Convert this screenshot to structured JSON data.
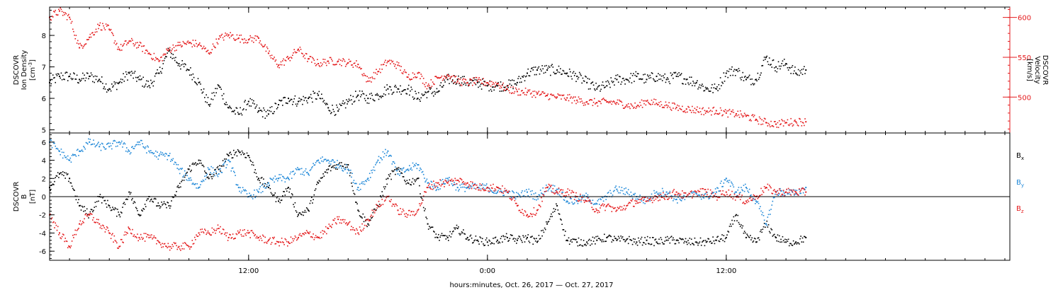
{
  "colors": {
    "black": "#000000",
    "red": "#e41a1c",
    "blue": "#1f88d8"
  },
  "chart_data": [
    {
      "panel": "plasma",
      "type": "scatter",
      "left_axis": {
        "label_lines": [
          "DSCOVR",
          "Ion Density"
        ],
        "unit_main": "[cm",
        "unit_sup": "-3",
        "unit_end": "]",
        "ylim": [
          4.9,
          8.9
        ],
        "ticks": [
          5,
          6,
          7,
          8
        ],
        "tick_labels": [
          "5",
          "6",
          "7",
          "8"
        ]
      },
      "right_axis": {
        "label_lines": [
          "DSCOVR",
          "Velocity",
          "[km/s]"
        ],
        "ylim": [
          455,
          613
        ],
        "ticks": [
          500,
          550,
          600
        ],
        "tick_labels": [
          "500",
          "550",
          "600"
        ],
        "color": "#e41a1c"
      },
      "xlim_hours": [
        2.0,
        50.25
      ],
      "series": [
        {
          "axis": "left",
          "color": "#000000",
          "x": [
            2.0,
            2.5,
            3.0,
            3.5,
            4.0,
            4.5,
            5.0,
            5.5,
            6.0,
            6.5,
            7.0,
            7.5,
            8.0,
            8.5,
            9.0,
            9.5,
            10.0,
            10.5,
            11.0,
            11.5,
            12.0,
            12.5,
            13.0,
            13.5,
            14.0,
            14.5,
            15.0,
            15.5,
            16.0,
            16.5,
            17.0,
            17.5,
            18.0,
            18.5,
            19.0,
            19.5,
            20.0,
            20.5,
            21.0,
            21.5,
            22.0,
            22.5,
            23.0,
            23.5,
            24.0,
            24.5,
            25.0,
            25.5,
            26.0,
            26.5,
            27.0,
            27.5,
            28.0,
            28.5,
            29.0,
            29.5,
            30.0,
            30.5,
            31.0,
            31.5,
            32.0,
            32.5,
            33.0,
            33.5,
            34.0,
            34.5,
            35.0,
            35.5,
            36.0,
            36.5,
            37.0,
            37.5,
            38.0,
            38.5,
            39.0,
            39.5,
            40.0
          ],
          "values": [
            6.5,
            6.7,
            6.7,
            6.6,
            6.7,
            6.6,
            6.3,
            6.5,
            6.8,
            6.6,
            6.4,
            6.8,
            7.5,
            7.1,
            6.9,
            6.5,
            5.8,
            6.4,
            5.7,
            5.5,
            5.9,
            5.6,
            5.5,
            5.8,
            6.0,
            5.9,
            6.0,
            6.1,
            5.7,
            5.6,
            5.9,
            6.1,
            6.0,
            6.1,
            6.3,
            6.3,
            6.3,
            6.0,
            6.2,
            6.2,
            6.6,
            6.6,
            6.5,
            6.5,
            6.4,
            6.4,
            6.4,
            6.5,
            6.8,
            6.9,
            6.9,
            6.9,
            6.8,
            6.7,
            6.5,
            6.3,
            6.4,
            6.6,
            6.6,
            6.7,
            6.6,
            6.7,
            6.6,
            6.7,
            6.6,
            6.5,
            6.3,
            6.3,
            6.8,
            6.9,
            6.6,
            6.6,
            7.3,
            7.0,
            7.1,
            6.8,
            6.9
          ]
        },
        {
          "axis": "right",
          "color": "#e41a1c",
          "x": [
            2.0,
            2.5,
            3.0,
            3.5,
            4.0,
            4.5,
            5.0,
            5.5,
            6.0,
            6.5,
            7.0,
            7.5,
            8.0,
            8.5,
            9.0,
            9.5,
            10.0,
            10.5,
            11.0,
            11.5,
            12.0,
            12.5,
            13.0,
            13.5,
            14.0,
            14.5,
            15.0,
            15.5,
            16.0,
            16.5,
            17.0,
            17.5,
            18.0,
            18.5,
            19.0,
            19.5,
            20.0,
            20.5,
            21.0,
            21.5,
            22.0,
            22.5,
            23.0,
            23.5,
            24.0,
            24.5,
            25.0,
            25.5,
            26.0,
            26.5,
            27.0,
            27.5,
            28.0,
            28.5,
            29.0,
            29.5,
            30.0,
            30.5,
            31.0,
            31.5,
            32.0,
            32.5,
            33.0,
            33.5,
            34.0,
            34.5,
            35.0,
            35.5,
            36.0,
            36.5,
            37.0,
            37.5,
            38.0,
            38.5,
            39.0,
            39.5,
            40.0
          ],
          "values": [
            600,
            608,
            600,
            562,
            575,
            590,
            585,
            560,
            570,
            565,
            555,
            545,
            560,
            565,
            568,
            566,
            555,
            573,
            578,
            574,
            572,
            574,
            555,
            540,
            548,
            560,
            548,
            542,
            545,
            545,
            543,
            541,
            520,
            532,
            545,
            540,
            525,
            530,
            514,
            524,
            528,
            520,
            518,
            520,
            518,
            517,
            510,
            507,
            506,
            504,
            502,
            500,
            499,
            496,
            494,
            493,
            494,
            493,
            490,
            488,
            495,
            492,
            490,
            487,
            485,
            484,
            482,
            483,
            480,
            479,
            476,
            472,
            468,
            466,
            468,
            469,
            469
          ]
        }
      ]
    },
    {
      "panel": "magnetic-field",
      "type": "scatter",
      "left_axis": {
        "label_lines": [
          "DSCOVR",
          "B",
          "[nT]"
        ],
        "ylim": [
          -7.0,
          7.0
        ],
        "ticks": [
          -6,
          -4,
          -2,
          0,
          2,
          4,
          6
        ],
        "tick_labels": [
          "-6",
          "-4",
          "-2",
          "0",
          "2",
          "4",
          "6"
        ]
      },
      "zero_line": 0,
      "legend": {
        "placement": "right",
        "entries": [
          {
            "base": "B",
            "sub": "x",
            "color": "#000000"
          },
          {
            "base": "B",
            "sub": "y",
            "color": "#1f88d8"
          },
          {
            "base": "B",
            "sub": "z",
            "color": "#e41a1c"
          }
        ]
      },
      "xlim_hours": [
        2.0,
        50.25
      ],
      "series": [
        {
          "name": "Bx",
          "color": "#000000",
          "x": [
            2.0,
            2.5,
            3.0,
            3.5,
            4.0,
            4.5,
            5.0,
            5.5,
            6.0,
            6.5,
            7.0,
            7.5,
            8.0,
            8.5,
            9.0,
            9.5,
            10.0,
            10.5,
            11.0,
            11.5,
            12.0,
            12.5,
            13.0,
            13.5,
            14.0,
            14.5,
            15.0,
            15.5,
            16.0,
            16.5,
            17.0,
            17.5,
            18.0,
            18.5,
            19.0,
            19.5,
            20.0,
            20.5,
            21.0,
            21.5,
            22.0,
            22.5,
            23.0,
            23.5,
            24.0,
            24.5,
            25.0,
            25.5,
            26.0,
            26.5,
            27.0,
            27.5,
            28.0,
            28.5,
            29.0,
            29.5,
            30.0,
            30.5,
            31.0,
            31.5,
            32.0,
            32.5,
            33.0,
            33.5,
            34.0,
            34.5,
            35.0,
            35.5,
            36.0,
            36.5,
            37.0,
            37.5,
            38.0,
            38.5,
            39.0,
            39.5,
            40.0
          ],
          "values": [
            1.0,
            2.5,
            2.0,
            -1.0,
            -2.0,
            0.0,
            -1.0,
            -2.0,
            0.5,
            -2.0,
            0.0,
            -1.0,
            -1.0,
            1.0,
            3.0,
            4.0,
            2.0,
            3.0,
            4.5,
            5.0,
            4.5,
            2.0,
            1.0,
            -0.5,
            1.0,
            -2.0,
            -1.5,
            1.5,
            3.0,
            3.5,
            3.5,
            -1.5,
            -3.0,
            -1.0,
            2.0,
            3.0,
            1.5,
            2.0,
            -3.0,
            -4.5,
            -4.5,
            -3.5,
            -4.5,
            -4.8,
            -5.0,
            -4.8,
            -4.5,
            -4.8,
            -4.5,
            -5.0,
            -3.0,
            -1.0,
            -4.8,
            -5.0,
            -5.0,
            -4.8,
            -4.5,
            -4.8,
            -4.7,
            -5.0,
            -4.8,
            -5.0,
            -4.8,
            -4.8,
            -5.0,
            -5.0,
            -5.0,
            -4.8,
            -4.5,
            -2.0,
            -4.5,
            -5.0,
            -3.0,
            -4.5,
            -5.0,
            -5.0,
            -4.5
          ]
        },
        {
          "name": "By",
          "color": "#1f88d8",
          "x": [
            2.0,
            2.5,
            3.0,
            3.5,
            4.0,
            4.5,
            5.0,
            5.5,
            6.0,
            6.5,
            7.0,
            7.5,
            8.0,
            8.5,
            9.0,
            9.5,
            10.0,
            10.5,
            11.0,
            11.5,
            12.0,
            12.5,
            13.0,
            13.5,
            14.0,
            14.5,
            15.0,
            15.5,
            16.0,
            16.5,
            17.0,
            17.5,
            18.0,
            18.5,
            19.0,
            19.5,
            20.0,
            20.5,
            21.0,
            21.5,
            22.0,
            22.5,
            23.0,
            23.5,
            24.0,
            24.5,
            25.0,
            25.5,
            26.0,
            26.5,
            27.0,
            27.5,
            28.0,
            28.5,
            29.0,
            29.5,
            30.0,
            30.5,
            31.0,
            31.5,
            32.0,
            32.5,
            33.0,
            33.5,
            34.0,
            34.5,
            35.0,
            35.5,
            36.0,
            36.5,
            37.0,
            37.5,
            38.0,
            38.5,
            39.0,
            39.5,
            40.0
          ],
          "values": [
            6.0,
            5.0,
            4.0,
            5.0,
            6.0,
            5.5,
            5.5,
            6.0,
            5.0,
            6.0,
            5.0,
            4.5,
            4.5,
            3.0,
            2.0,
            1.0,
            3.0,
            2.5,
            4.0,
            1.0,
            0.0,
            0.5,
            1.5,
            2.0,
            2.0,
            3.0,
            2.5,
            4.0,
            4.0,
            3.5,
            3.0,
            1.0,
            2.0,
            4.0,
            5.0,
            2.5,
            3.0,
            3.5,
            1.5,
            1.0,
            2.0,
            1.0,
            1.0,
            1.0,
            1.0,
            0.5,
            0.5,
            0.0,
            0.5,
            0.0,
            1.0,
            0.8,
            -0.5,
            -0.5,
            0.0,
            -0.8,
            0.0,
            0.8,
            0.5,
            0.0,
            -0.5,
            0.5,
            0.5,
            -0.3,
            0.0,
            0.3,
            0.0,
            0.5,
            2.0,
            0.5,
            1.0,
            -0.5,
            -3.0,
            0.5,
            0.5,
            0.3,
            1.0
          ]
        },
        {
          "name": "Bz",
          "color": "#e41a1c",
          "x": [
            2.0,
            2.5,
            3.0,
            3.5,
            4.0,
            4.5,
            5.0,
            5.5,
            6.0,
            6.5,
            7.0,
            7.5,
            8.0,
            8.5,
            9.0,
            9.5,
            10.0,
            10.5,
            11.0,
            11.5,
            12.0,
            12.5,
            13.0,
            13.5,
            14.0,
            14.5,
            15.0,
            15.5,
            16.0,
            16.5,
            17.0,
            17.5,
            18.0,
            18.5,
            19.0,
            19.5,
            20.0,
            20.5,
            21.0,
            21.5,
            22.0,
            22.5,
            23.0,
            23.5,
            24.0,
            24.5,
            25.0,
            25.5,
            26.0,
            26.5,
            27.0,
            27.5,
            28.0,
            28.5,
            29.0,
            29.5,
            30.0,
            30.5,
            31.0,
            31.5,
            32.0,
            32.5,
            33.0,
            33.5,
            34.0,
            34.5,
            35.0,
            35.5,
            36.0,
            36.5,
            37.0,
            37.5,
            38.0,
            38.5,
            39.0,
            39.5,
            40.0
          ],
          "values": [
            -2.0,
            -4.0,
            -5.5,
            -3.0,
            -2.0,
            -3.0,
            -4.0,
            -5.5,
            -3.5,
            -4.5,
            -4.5,
            -5.0,
            -5.5,
            -5.5,
            -5.5,
            -4.0,
            -4.0,
            -3.5,
            -4.5,
            -4.0,
            -4.0,
            -4.5,
            -4.8,
            -5.0,
            -5.0,
            -4.5,
            -4.0,
            -4.5,
            -3.5,
            -2.5,
            -3.0,
            -4.0,
            -2.5,
            -1.0,
            0.0,
            -1.5,
            -2.0,
            -1.5,
            1.0,
            1.5,
            1.5,
            1.8,
            1.5,
            1.0,
            1.0,
            1.0,
            0.5,
            -1.0,
            -2.0,
            -1.5,
            1.0,
            0.5,
            0.5,
            0.0,
            -0.5,
            -1.5,
            -1.0,
            -1.5,
            -1.0,
            -0.5,
            -0.5,
            0.0,
            0.0,
            0.5,
            0.0,
            0.5,
            0.5,
            0.0,
            0.5,
            0.0,
            -0.5,
            0.0,
            1.0,
            0.5,
            0.5,
            0.5,
            0.5
          ]
        }
      ]
    }
  ],
  "x_axis": {
    "ticks_hours": [
      12,
      24,
      36
    ],
    "tick_labels": [
      "12:00",
      "0:00",
      "12:00"
    ],
    "minor_tick_step_hours": 1,
    "title": "hours:minutes, Oct. 26, 2017 — Oct. 27, 2017"
  }
}
